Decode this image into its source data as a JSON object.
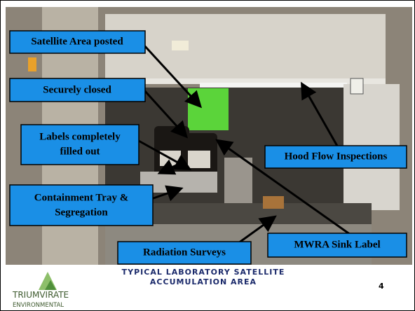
{
  "slide": {
    "callouts": [
      {
        "lines": [
          "Satellite Area posted"
        ]
      },
      {
        "lines": [
          "Securely closed"
        ]
      },
      {
        "lines": [
          "Labels completely",
          "filled out"
        ]
      },
      {
        "lines": [
          "Containment Tray &",
          "Segregation"
        ]
      },
      {
        "lines": [
          "Radiation Surveys"
        ]
      },
      {
        "lines": [
          "MWRA Sink Label"
        ]
      },
      {
        "lines": [
          "Hood Flow Inspections"
        ]
      }
    ],
    "caption": [
      "TYPICAL LABORATORY SATELLITE",
      "ACCUMULATION AREA"
    ],
    "logo": [
      "TRIUMVIRATE",
      "ENVIRONMENTAL"
    ],
    "page_number": "4"
  }
}
